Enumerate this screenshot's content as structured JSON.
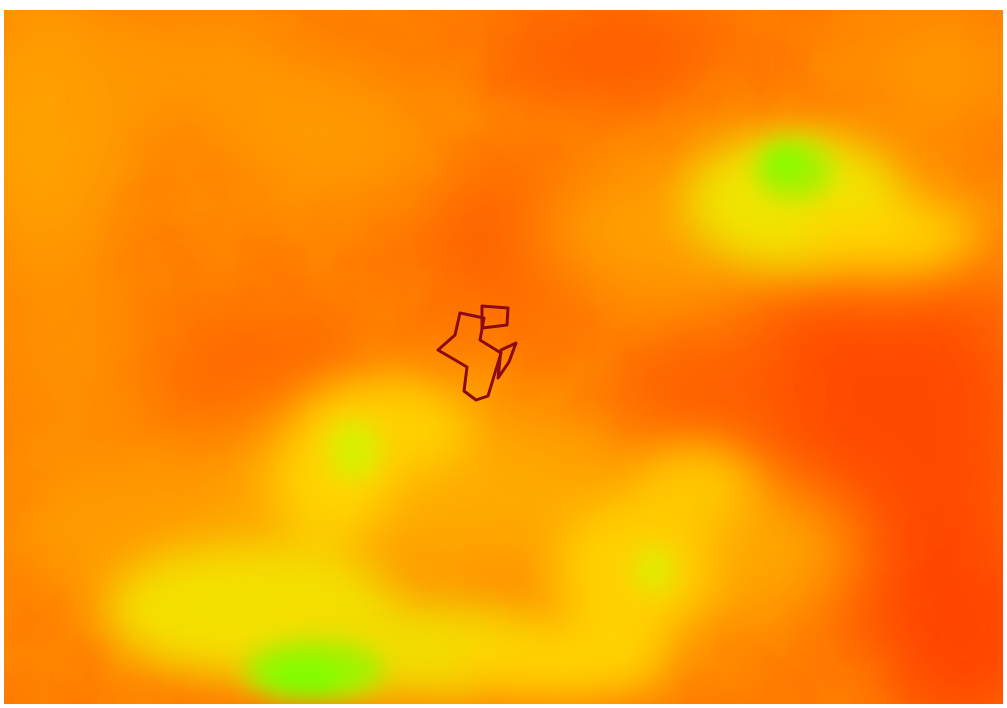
{
  "map": {
    "type": "elevation-raster",
    "color_ramp": {
      "low": "#ff4a00",
      "mid_low": "#ff7a00",
      "mid": "#ffb400",
      "mid_high": "#f0f000",
      "high": "#7cff00"
    },
    "overlay": {
      "type": "polygon-outline",
      "stroke_color": "#8a0a1a",
      "parts": 3
    }
  }
}
